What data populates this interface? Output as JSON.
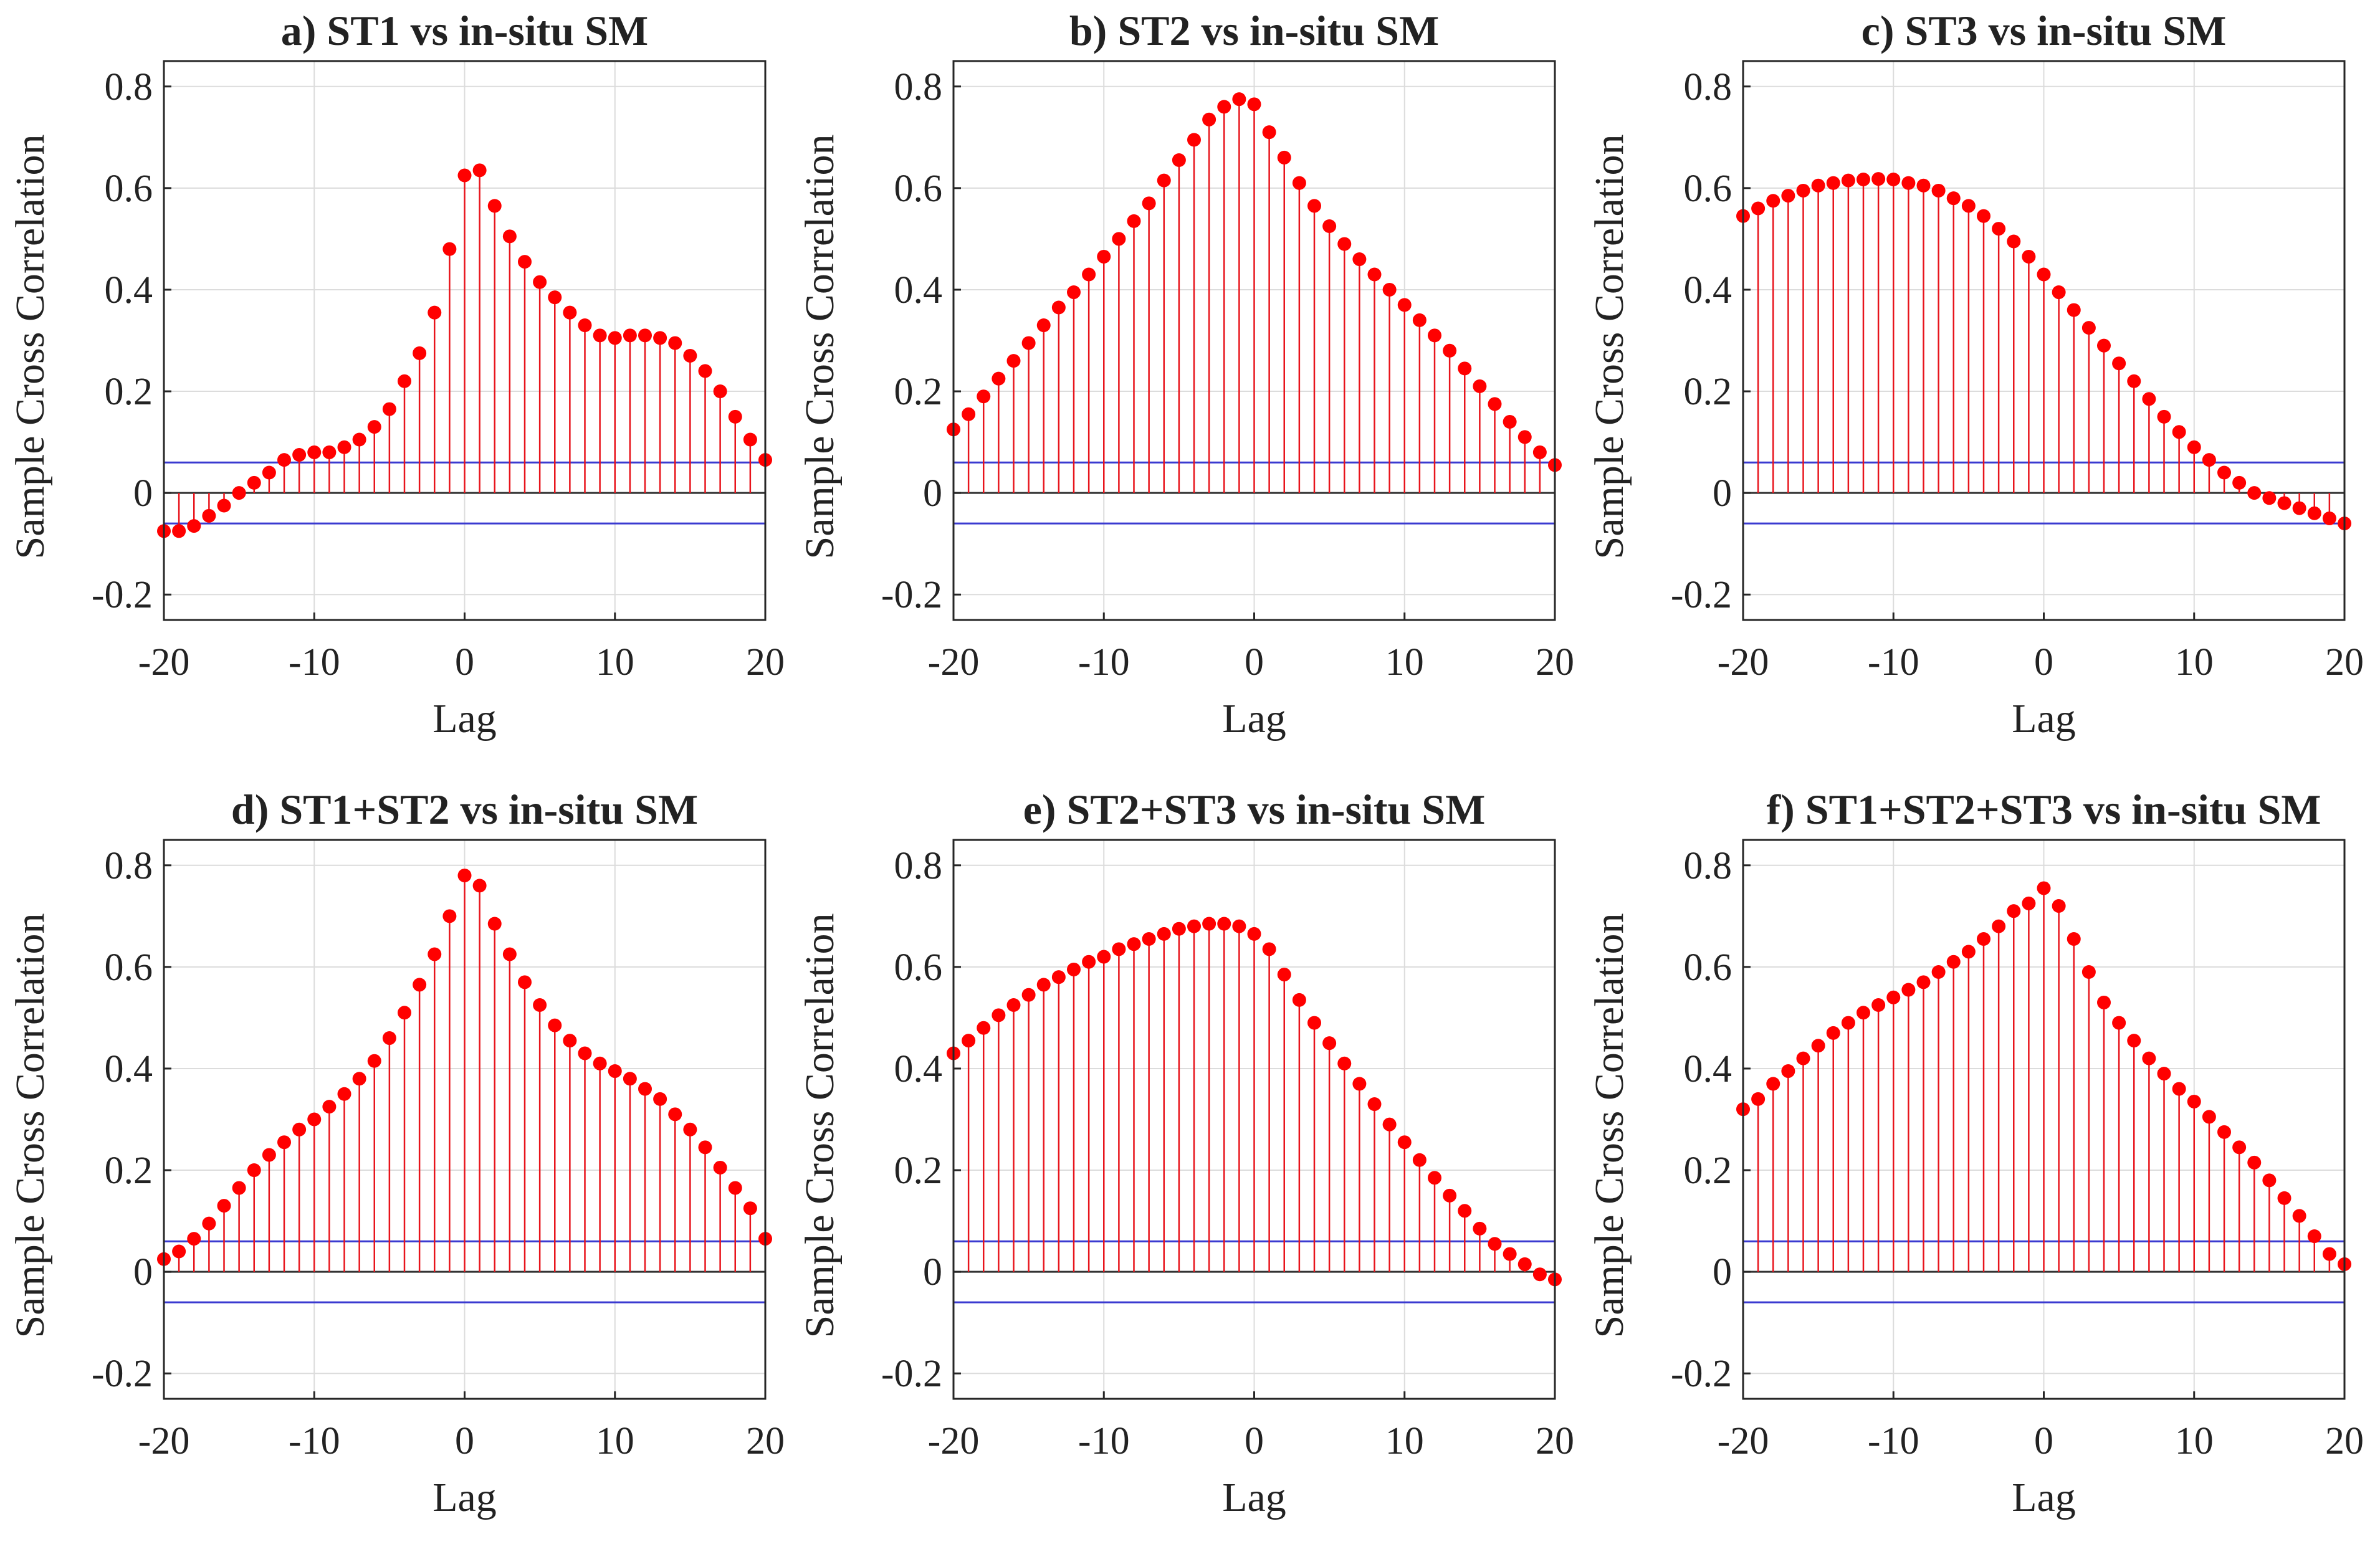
{
  "figure": {
    "colors": {
      "stem": "#e8141c",
      "marker": "#ff0000",
      "bound": "#3a3ad0",
      "grid": "#dcdcdc",
      "axis": "#262626"
    }
  },
  "chart_data": [
    {
      "type": "stem",
      "title": "a) ST1 vs in-situ SM",
      "xlabel": "Lag",
      "ylabel": "Sample Cross Correlation",
      "xlim": [
        -20,
        20
      ],
      "ylim": [
        -0.25,
        0.85
      ],
      "xticks": [
        -20,
        -10,
        0,
        10,
        20
      ],
      "xtick_labels": [
        "-20",
        "-10",
        "0",
        "10",
        "20"
      ],
      "yticks": [
        -0.2,
        0,
        0.2,
        0.4,
        0.6,
        0.8
      ],
      "ytick_labels": [
        "-0.2",
        "0",
        "0.2",
        "0.4",
        "0.6",
        "0.8"
      ],
      "bounds": [
        0.06,
        -0.06
      ],
      "x": [
        -20,
        -19,
        -18,
        -17,
        -16,
        -15,
        -14,
        -13,
        -12,
        -11,
        -10,
        -9,
        -8,
        -7,
        -6,
        -5,
        -4,
        -3,
        -2,
        -1,
        0,
        1,
        2,
        3,
        4,
        5,
        6,
        7,
        8,
        9,
        10,
        11,
        12,
        13,
        14,
        15,
        16,
        17,
        18,
        19,
        20
      ],
      "values": [
        -0.075,
        -0.075,
        -0.065,
        -0.045,
        -0.025,
        0.0,
        0.02,
        0.04,
        0.065,
        0.075,
        0.08,
        0.08,
        0.09,
        0.105,
        0.13,
        0.165,
        0.22,
        0.275,
        0.355,
        0.48,
        0.625,
        0.635,
        0.565,
        0.505,
        0.455,
        0.415,
        0.385,
        0.355,
        0.33,
        0.31,
        0.305,
        0.31,
        0.31,
        0.305,
        0.295,
        0.27,
        0.24,
        0.2,
        0.15,
        0.105,
        0.065
      ]
    },
    {
      "type": "stem",
      "title": "b) ST2 vs in-situ SM",
      "xlabel": "Lag",
      "ylabel": "Sample Cross Correlation",
      "xlim": [
        -20,
        20
      ],
      "ylim": [
        -0.25,
        0.85
      ],
      "xticks": [
        -20,
        -10,
        0,
        10,
        20
      ],
      "xtick_labels": [
        "-20",
        "-10",
        "0",
        "10",
        "20"
      ],
      "yticks": [
        -0.2,
        0,
        0.2,
        0.4,
        0.6,
        0.8
      ],
      "ytick_labels": [
        "-0.2",
        "0",
        "0.2",
        "0.4",
        "0.6",
        "0.8"
      ],
      "bounds": [
        0.06,
        -0.06
      ],
      "x": [
        -20,
        -19,
        -18,
        -17,
        -16,
        -15,
        -14,
        -13,
        -12,
        -11,
        -10,
        -9,
        -8,
        -7,
        -6,
        -5,
        -4,
        -3,
        -2,
        -1,
        0,
        1,
        2,
        3,
        4,
        5,
        6,
        7,
        8,
        9,
        10,
        11,
        12,
        13,
        14,
        15,
        16,
        17,
        18,
        19,
        20
      ],
      "values": [
        0.125,
        0.155,
        0.19,
        0.225,
        0.26,
        0.295,
        0.33,
        0.365,
        0.395,
        0.43,
        0.465,
        0.5,
        0.535,
        0.57,
        0.615,
        0.655,
        0.695,
        0.735,
        0.76,
        0.775,
        0.765,
        0.71,
        0.66,
        0.61,
        0.565,
        0.525,
        0.49,
        0.46,
        0.43,
        0.4,
        0.37,
        0.34,
        0.31,
        0.28,
        0.245,
        0.21,
        0.175,
        0.14,
        0.11,
        0.08,
        0.055
      ]
    },
    {
      "type": "stem",
      "title": "c) ST3 vs in-situ SM",
      "xlabel": "Lag",
      "ylabel": "Sample Cross Correlation",
      "xlim": [
        -20,
        20
      ],
      "ylim": [
        -0.25,
        0.85
      ],
      "xticks": [
        -20,
        -10,
        0,
        10,
        20
      ],
      "xtick_labels": [
        "-20",
        "-10",
        "0",
        "10",
        "20"
      ],
      "yticks": [
        -0.2,
        0,
        0.2,
        0.4,
        0.6,
        0.8
      ],
      "ytick_labels": [
        "-0.2",
        "0",
        "0.2",
        "0.4",
        "0.6",
        "0.8"
      ],
      "bounds": [
        0.06,
        -0.06
      ],
      "x": [
        -20,
        -19,
        -18,
        -17,
        -16,
        -15,
        -14,
        -13,
        -12,
        -11,
        -10,
        -9,
        -8,
        -7,
        -6,
        -5,
        -4,
        -3,
        -2,
        -1,
        0,
        1,
        2,
        3,
        4,
        5,
        6,
        7,
        8,
        9,
        10,
        11,
        12,
        13,
        14,
        15,
        16,
        17,
        18,
        19,
        20
      ],
      "values": [
        0.545,
        0.56,
        0.575,
        0.585,
        0.595,
        0.605,
        0.61,
        0.615,
        0.617,
        0.618,
        0.617,
        0.61,
        0.605,
        0.595,
        0.58,
        0.565,
        0.545,
        0.52,
        0.495,
        0.465,
        0.43,
        0.395,
        0.36,
        0.325,
        0.29,
        0.255,
        0.22,
        0.185,
        0.15,
        0.12,
        0.09,
        0.065,
        0.04,
        0.02,
        0.0,
        -0.01,
        -0.02,
        -0.03,
        -0.04,
        -0.05,
        -0.06
      ]
    },
    {
      "type": "stem",
      "title": "d) ST1+ST2 vs in-situ SM",
      "xlabel": "Lag",
      "ylabel": "Sample Cross Correlation",
      "xlim": [
        -20,
        20
      ],
      "ylim": [
        -0.25,
        0.85
      ],
      "xticks": [
        -20,
        -10,
        0,
        10,
        20
      ],
      "xtick_labels": [
        "-20",
        "-10",
        "0",
        "10",
        "20"
      ],
      "yticks": [
        -0.2,
        0,
        0.2,
        0.4,
        0.6,
        0.8
      ],
      "ytick_labels": [
        "-0.2",
        "0",
        "0.2",
        "0.4",
        "0.6",
        "0.8"
      ],
      "bounds": [
        0.06,
        -0.06
      ],
      "x": [
        -20,
        -19,
        -18,
        -17,
        -16,
        -15,
        -14,
        -13,
        -12,
        -11,
        -10,
        -9,
        -8,
        -7,
        -6,
        -5,
        -4,
        -3,
        -2,
        -1,
        0,
        1,
        2,
        3,
        4,
        5,
        6,
        7,
        8,
        9,
        10,
        11,
        12,
        13,
        14,
        15,
        16,
        17,
        18,
        19,
        20
      ],
      "values": [
        0.025,
        0.04,
        0.065,
        0.095,
        0.13,
        0.165,
        0.2,
        0.23,
        0.255,
        0.28,
        0.3,
        0.325,
        0.35,
        0.38,
        0.415,
        0.46,
        0.51,
        0.565,
        0.625,
        0.7,
        0.78,
        0.76,
        0.685,
        0.625,
        0.57,
        0.525,
        0.485,
        0.455,
        0.43,
        0.41,
        0.395,
        0.38,
        0.36,
        0.34,
        0.31,
        0.28,
        0.245,
        0.205,
        0.165,
        0.125,
        0.065
      ]
    },
    {
      "type": "stem",
      "title": "e) ST2+ST3 vs in-situ SM",
      "xlabel": "Lag",
      "ylabel": "Sample Cross Correlation",
      "xlim": [
        -20,
        20
      ],
      "ylim": [
        -0.25,
        0.85
      ],
      "xticks": [
        -20,
        -10,
        0,
        10,
        20
      ],
      "xtick_labels": [
        "-20",
        "-10",
        "0",
        "10",
        "20"
      ],
      "yticks": [
        -0.2,
        0,
        0.2,
        0.4,
        0.6,
        0.8
      ],
      "ytick_labels": [
        "-0.2",
        "0",
        "0.2",
        "0.4",
        "0.6",
        "0.8"
      ],
      "bounds": [
        0.06,
        -0.06
      ],
      "x": [
        -20,
        -19,
        -18,
        -17,
        -16,
        -15,
        -14,
        -13,
        -12,
        -11,
        -10,
        -9,
        -8,
        -7,
        -6,
        -5,
        -4,
        -3,
        -2,
        -1,
        0,
        1,
        2,
        3,
        4,
        5,
        6,
        7,
        8,
        9,
        10,
        11,
        12,
        13,
        14,
        15,
        16,
        17,
        18,
        19,
        20
      ],
      "values": [
        0.43,
        0.455,
        0.48,
        0.505,
        0.525,
        0.545,
        0.565,
        0.58,
        0.595,
        0.61,
        0.62,
        0.635,
        0.645,
        0.655,
        0.665,
        0.675,
        0.68,
        0.685,
        0.685,
        0.68,
        0.665,
        0.635,
        0.585,
        0.535,
        0.49,
        0.45,
        0.41,
        0.37,
        0.33,
        0.29,
        0.255,
        0.22,
        0.185,
        0.15,
        0.12,
        0.085,
        0.055,
        0.035,
        0.015,
        -0.005,
        -0.015
      ]
    },
    {
      "type": "stem",
      "title": "f) ST1+ST2+ST3 vs in-situ SM",
      "xlabel": "Lag",
      "ylabel": "Sample Cross Correlation",
      "xlim": [
        -20,
        20
      ],
      "ylim": [
        -0.25,
        0.85
      ],
      "xticks": [
        -20,
        -10,
        0,
        10,
        20
      ],
      "xtick_labels": [
        "-20",
        "-10",
        "0",
        "10",
        "20"
      ],
      "yticks": [
        -0.2,
        0,
        0.2,
        0.4,
        0.6,
        0.8
      ],
      "ytick_labels": [
        "-0.2",
        "0",
        "0.2",
        "0.4",
        "0.6",
        "0.8"
      ],
      "bounds": [
        0.06,
        -0.06
      ],
      "x": [
        -20,
        -19,
        -18,
        -17,
        -16,
        -15,
        -14,
        -13,
        -12,
        -11,
        -10,
        -9,
        -8,
        -7,
        -6,
        -5,
        -4,
        -3,
        -2,
        -1,
        0,
        1,
        2,
        3,
        4,
        5,
        6,
        7,
        8,
        9,
        10,
        11,
        12,
        13,
        14,
        15,
        16,
        17,
        18,
        19,
        20
      ],
      "values": [
        0.32,
        0.34,
        0.37,
        0.395,
        0.42,
        0.445,
        0.47,
        0.49,
        0.51,
        0.525,
        0.54,
        0.555,
        0.57,
        0.59,
        0.61,
        0.63,
        0.655,
        0.68,
        0.71,
        0.725,
        0.755,
        0.72,
        0.655,
        0.59,
        0.53,
        0.49,
        0.455,
        0.42,
        0.39,
        0.36,
        0.335,
        0.305,
        0.275,
        0.245,
        0.215,
        0.18,
        0.145,
        0.11,
        0.07,
        0.035,
        0.015
      ]
    }
  ]
}
